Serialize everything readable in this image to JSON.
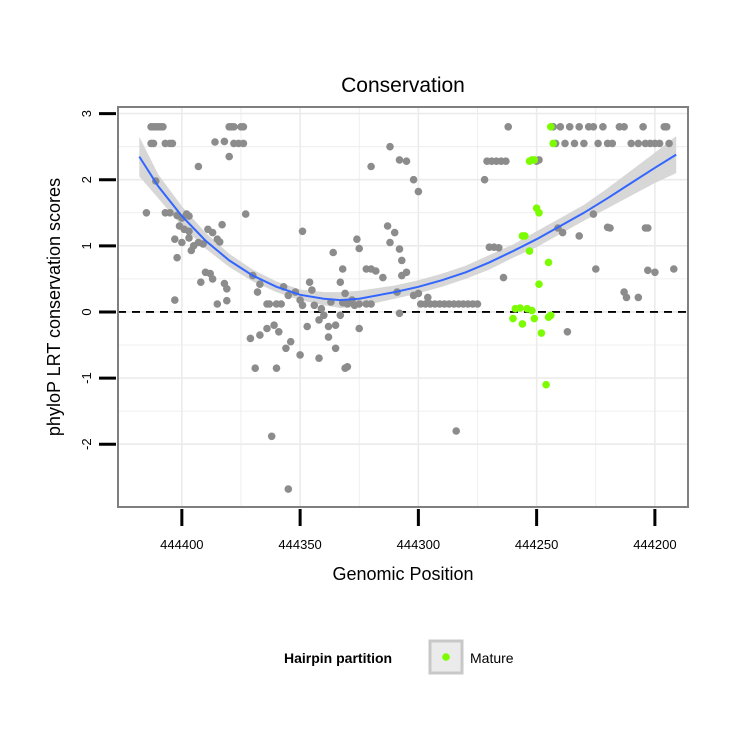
{
  "chart_data": {
    "type": "scatter",
    "title": "Conservation",
    "xlabel": "Genomic Position",
    "ylabel": "phyloP LRT conservation scores",
    "x_reversed": true,
    "xlim": [
      444427,
      444186
    ],
    "ylim": [
      -2.95,
      3.1
    ],
    "x_ticks": [
      444400,
      444350,
      444300,
      444250,
      444200
    ],
    "y_ticks": [
      -2,
      -1,
      0,
      1,
      2,
      3
    ],
    "reference_line": {
      "y": 0,
      "style": "dashed"
    },
    "grid": true,
    "legend": {
      "title": "Hairpin partition",
      "placement": "bottom",
      "entries": [
        "Mature"
      ]
    },
    "colors": {
      "other": "#8c8c8c",
      "mature": "#7cfc00",
      "smooth": "#3366ff",
      "band": "#d3d3d3",
      "frame": "#7f7f7f",
      "grid": "#ebebeb"
    },
    "series": [
      {
        "group": "other",
        "points": [
          [
            444413,
            2.8
          ],
          [
            444412,
            2.8
          ],
          [
            444411,
            2.8
          ],
          [
            444410,
            2.8
          ],
          [
            444409,
            2.8
          ],
          [
            444408,
            2.8
          ],
          [
            444412,
            2.55
          ],
          [
            444413,
            2.55
          ],
          [
            444407,
            2.55
          ],
          [
            444405,
            2.55
          ],
          [
            444404,
            2.55
          ],
          [
            444380,
            2.8
          ],
          [
            444379,
            2.8
          ],
          [
            444378,
            2.8
          ],
          [
            444375,
            2.8
          ],
          [
            444374,
            2.8
          ],
          [
            444382,
            2.58
          ],
          [
            444378,
            2.55
          ],
          [
            444376,
            2.55
          ],
          [
            444374,
            2.55
          ],
          [
            444380,
            2.35
          ],
          [
            444386,
            2.57
          ],
          [
            444393,
            2.2
          ],
          [
            444411,
            1.98
          ],
          [
            444415,
            1.5
          ],
          [
            444407,
            1.5
          ],
          [
            444405,
            1.5
          ],
          [
            444402,
            1.46
          ],
          [
            444400,
            1.42
          ],
          [
            444398,
            1.48
          ],
          [
            444397,
            1.45
          ],
          [
            444401,
            1.3
          ],
          [
            444399,
            1.25
          ],
          [
            444397,
            1.22
          ],
          [
            444389,
            1.25
          ],
          [
            444387,
            1.2
          ],
          [
            444383,
            1.32
          ],
          [
            444403,
            1.1
          ],
          [
            444400,
            1.05
          ],
          [
            444397,
            1.12
          ],
          [
            444395,
            1.0
          ],
          [
            444393,
            1.05
          ],
          [
            444391,
            1.03
          ],
          [
            444385,
            1.1
          ],
          [
            444384,
            1.06
          ],
          [
            444396,
            0.93
          ],
          [
            444402,
            0.82
          ],
          [
            444390,
            0.6
          ],
          [
            444388,
            0.58
          ],
          [
            444387,
            0.5
          ],
          [
            444392,
            0.45
          ],
          [
            444382,
            0.43
          ],
          [
            444381,
            0.35
          ],
          [
            444385,
            0.12
          ],
          [
            444381,
            0.17
          ],
          [
            444403,
            0.18
          ],
          [
            444373,
            1.48
          ],
          [
            444370,
            0.55
          ],
          [
            444367,
            0.42
          ],
          [
            444368,
            0.3
          ],
          [
            444364,
            0.12
          ],
          [
            444363,
            0.12
          ],
          [
            444360,
            0.12
          ],
          [
            444358,
            0.12
          ],
          [
            444371,
            -0.4
          ],
          [
            444367,
            -0.35
          ],
          [
            444364,
            -0.25
          ],
          [
            444361,
            -0.2
          ],
          [
            444359,
            -0.3
          ],
          [
            444369,
            -0.85
          ],
          [
            444360,
            -0.85
          ],
          [
            444356,
            -0.55
          ],
          [
            444354,
            -0.45
          ],
          [
            444350,
            -0.65
          ],
          [
            444357,
            0.38
          ],
          [
            444355,
            0.25
          ],
          [
            444352,
            0.3
          ],
          [
            444350,
            0.18
          ],
          [
            444349,
            0.1
          ],
          [
            444349,
            1.22
          ],
          [
            444346,
            0.45
          ],
          [
            444345,
            0.33
          ],
          [
            444344,
            0.1
          ],
          [
            444347,
            -0.22
          ],
          [
            444342,
            -0.12
          ],
          [
            444340,
            -0.05
          ],
          [
            444338,
            -0.22
          ],
          [
            444335,
            -0.2
          ],
          [
            444333,
            -0.05
          ],
          [
            444342,
            -0.7
          ],
          [
            444338,
            -0.38
          ],
          [
            444335,
            -0.55
          ],
          [
            444341,
            0.05
          ],
          [
            444337,
            0.15
          ],
          [
            444332,
            0.14
          ],
          [
            444330,
            0.12
          ],
          [
            444328,
            0.18
          ],
          [
            444336,
            0.9
          ],
          [
            444327,
            0.1
          ],
          [
            444325,
            0.12
          ],
          [
            444322,
            0.12
          ],
          [
            444320,
            0.12
          ],
          [
            444331,
            -0.85
          ],
          [
            444330,
            -0.83
          ],
          [
            444325,
            -0.25
          ],
          [
            444333,
            0.45
          ],
          [
            444332,
            0.65
          ],
          [
            444331,
            0.28
          ],
          [
            444326,
            1.1
          ],
          [
            444325,
            0.96
          ],
          [
            444322,
            0.65
          ],
          [
            444320,
            0.65
          ],
          [
            444318,
            0.62
          ],
          [
            444315,
            0.52
          ],
          [
            444313,
            1.3
          ],
          [
            444312,
            1.05
          ],
          [
            444310,
            1.2
          ],
          [
            444308,
            0.95
          ],
          [
            444307,
            0.78
          ],
          [
            444305,
            0.6
          ],
          [
            444320,
            2.2
          ],
          [
            444312,
            2.5
          ],
          [
            444308,
            2.3
          ],
          [
            444305,
            2.28
          ],
          [
            444302,
            2.0
          ],
          [
            444300,
            1.82
          ],
          [
            444309,
            0.3
          ],
          [
            444307,
            0.55
          ],
          [
            444308,
            -0.02
          ],
          [
            444299,
            0.12
          ],
          [
            444297,
            0.12
          ],
          [
            444295,
            0.12
          ],
          [
            444293,
            0.12
          ],
          [
            444291,
            0.12
          ],
          [
            444289,
            0.12
          ],
          [
            444287,
            0.12
          ],
          [
            444285,
            0.12
          ],
          [
            444283,
            0.12
          ],
          [
            444281,
            0.12
          ],
          [
            444279,
            0.12
          ],
          [
            444277,
            0.12
          ],
          [
            444275,
            0.12
          ],
          [
            444302,
            0.25
          ],
          [
            444300,
            0.28
          ],
          [
            444296,
            0.22
          ],
          [
            444284,
            -1.8
          ],
          [
            444272,
            2.0
          ],
          [
            444271,
            2.28
          ],
          [
            444269,
            2.28
          ],
          [
            444267,
            2.28
          ],
          [
            444265,
            2.28
          ],
          [
            444263,
            2.28
          ],
          [
            444270,
            0.98
          ],
          [
            444268,
            0.98
          ],
          [
            444266,
            0.97
          ],
          [
            444264,
            0.52
          ],
          [
            444262,
            2.8
          ],
          [
            444249,
            2.3
          ],
          [
            444250,
            2.28
          ],
          [
            444240,
            2.8
          ],
          [
            444238,
            2.55
          ],
          [
            444236,
            2.8
          ],
          [
            444234,
            2.55
          ],
          [
            444232,
            2.8
          ],
          [
            444230,
            2.55
          ],
          [
            444228,
            2.8
          ],
          [
            444226,
            2.8
          ],
          [
            444224,
            2.55
          ],
          [
            444222,
            2.8
          ],
          [
            444220,
            2.55
          ],
          [
            444218,
            2.55
          ],
          [
            444215,
            2.8
          ],
          [
            444213,
            2.8
          ],
          [
            444210,
            2.55
          ],
          [
            444207,
            2.55
          ],
          [
            444205,
            2.8
          ],
          [
            444204,
            2.55
          ],
          [
            444202,
            2.55
          ],
          [
            444200,
            2.55
          ],
          [
            444198,
            2.55
          ],
          [
            444196,
            2.8
          ],
          [
            444195,
            2.8
          ],
          [
            444194,
            2.55
          ],
          [
            444242,
            2.55
          ],
          [
            444243,
            2.8
          ],
          [
            444241,
            1.27
          ],
          [
            444239,
            1.2
          ],
          [
            444232,
            1.15
          ],
          [
            444226,
            1.48
          ],
          [
            444220,
            1.28
          ],
          [
            444219,
            1.27
          ],
          [
            444204,
            1.27
          ],
          [
            444203,
            1.27
          ],
          [
            444225,
            0.65
          ],
          [
            444213,
            0.3
          ],
          [
            444212,
            0.22
          ],
          [
            444207,
            0.22
          ],
          [
            444203,
            0.63
          ],
          [
            444200,
            0.6
          ],
          [
            444192,
            0.65
          ],
          [
            444237,
            -0.3
          ],
          [
            444355,
            -2.68
          ],
          [
            444362,
            -1.88
          ]
        ]
      },
      {
        "group": "mature",
        "points": [
          [
            444252,
            2.3
          ],
          [
            444251,
            2.3
          ],
          [
            444253,
            2.28
          ],
          [
            444244,
            2.8
          ],
          [
            444243,
            2.55
          ],
          [
            444250,
            1.57
          ],
          [
            444249,
            1.5
          ],
          [
            444256,
            1.15
          ],
          [
            444255,
            1.15
          ],
          [
            444253,
            0.92
          ],
          [
            444245,
            0.75
          ],
          [
            444249,
            0.42
          ],
          [
            444254,
            0.05
          ],
          [
            444252,
            0.02
          ],
          [
            444256,
            -0.18
          ],
          [
            444245,
            -0.08
          ],
          [
            444244,
            -0.05
          ],
          [
            444260,
            -0.1
          ],
          [
            444259,
            0.05
          ],
          [
            444257,
            0.06
          ],
          [
            444251,
            -0.1
          ],
          [
            444248,
            -0.32
          ],
          [
            444246,
            -1.1
          ]
        ]
      }
    ],
    "smooth": {
      "x": [
        444418,
        444410,
        444400,
        444390,
        444380,
        444370,
        444360,
        444350,
        444340,
        444333,
        444325,
        444310,
        444300,
        444290,
        444280,
        444270,
        444260,
        444250,
        444240,
        444230,
        444220,
        444210,
        444200,
        444191
      ],
      "y": [
        2.35,
        1.9,
        1.45,
        1.08,
        0.78,
        0.55,
        0.38,
        0.26,
        0.2,
        0.18,
        0.2,
        0.3,
        0.38,
        0.48,
        0.6,
        0.75,
        0.92,
        1.1,
        1.3,
        1.5,
        1.72,
        1.95,
        2.18,
        2.38
      ],
      "lower": [
        2.05,
        1.72,
        1.3,
        0.96,
        0.68,
        0.46,
        0.3,
        0.18,
        0.1,
        0.06,
        0.08,
        0.2,
        0.28,
        0.38,
        0.5,
        0.64,
        0.82,
        0.98,
        1.18,
        1.38,
        1.57,
        1.76,
        1.95,
        2.1
      ],
      "upper": [
        2.65,
        2.08,
        1.6,
        1.2,
        0.88,
        0.64,
        0.46,
        0.34,
        0.3,
        0.3,
        0.32,
        0.4,
        0.48,
        0.58,
        0.7,
        0.86,
        1.02,
        1.22,
        1.42,
        1.62,
        1.87,
        2.14,
        2.41,
        2.66
      ]
    }
  }
}
